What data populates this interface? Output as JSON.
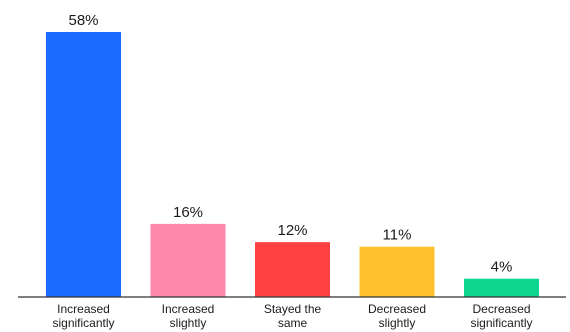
{
  "chart_data": {
    "type": "bar",
    "categories": [
      [
        "Increased",
        "significantly"
      ],
      [
        "Increased",
        "slightly"
      ],
      [
        "Stayed the",
        "same"
      ],
      [
        "Decreased",
        "slightly"
      ],
      [
        "Decreased",
        "significantly"
      ]
    ],
    "values": [
      58,
      16,
      12,
      11,
      4
    ],
    "value_labels": [
      "58%",
      "16%",
      "12%",
      "11%",
      "4%"
    ],
    "colors": [
      "#1a6bff",
      "#ff87ac",
      "#ff4141",
      "#ffc22c",
      "#0fd68e"
    ],
    "axis_color": "#333333",
    "ylim": [
      0,
      60
    ],
    "title": "",
    "xlabel": "",
    "ylabel": "",
    "grid": false,
    "legend": "none"
  }
}
